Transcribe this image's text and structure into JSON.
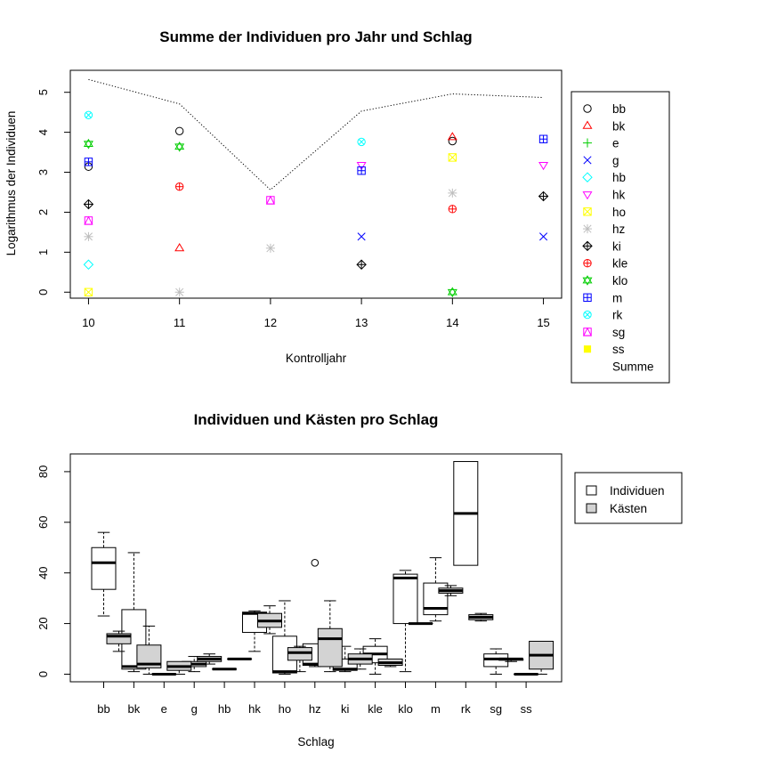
{
  "chart_data": [
    {
      "type": "scatter",
      "title": "Summe der Individuen pro Jahr und Schlag",
      "xlabel": "Kontrolljahr",
      "ylabel": "Logarithmus der Individuen",
      "xlim": [
        9.8,
        15.2
      ],
      "ylim": [
        -0.15,
        5.55
      ],
      "xticks": [
        10,
        11,
        12,
        13,
        14,
        15
      ],
      "yticks": [
        0,
        1,
        2,
        3,
        4,
        5
      ],
      "legend_position": "right",
      "series": [
        {
          "name": "bb",
          "color": "#000000",
          "marker": "circle",
          "points": [
            [
              10,
              3.14
            ],
            [
              11,
              4.03
            ],
            [
              14,
              3.78
            ]
          ]
        },
        {
          "name": "bk",
          "color": "#FF0000",
          "marker": "triangle-up",
          "points": [
            [
              11,
              1.1
            ],
            [
              14,
              3.88
            ]
          ]
        },
        {
          "name": "e",
          "color": "#00CD00",
          "marker": "plus",
          "points": []
        },
        {
          "name": "g",
          "color": "#0000FF",
          "marker": "x",
          "points": [
            [
              13,
              1.39
            ],
            [
              15,
              1.39
            ]
          ]
        },
        {
          "name": "hb",
          "color": "#00FFFF",
          "marker": "diamond",
          "points": [
            [
              10,
              0.69
            ]
          ]
        },
        {
          "name": "hk",
          "color": "#FF00FF",
          "marker": "triangle-down",
          "points": [
            [
              13,
              3.18
            ],
            [
              15,
              3.18
            ]
          ]
        },
        {
          "name": "ho",
          "color": "#FFFF00",
          "marker": "square-x",
          "points": [
            [
              10,
              0
            ],
            [
              14,
              3.37
            ]
          ]
        },
        {
          "name": "hz",
          "color": "#BEBEBE",
          "marker": "asterisk",
          "points": [
            [
              10,
              1.39
            ],
            [
              11,
              0
            ],
            [
              12,
              1.1
            ],
            [
              14,
              2.48
            ]
          ]
        },
        {
          "name": "ki",
          "color": "#000000",
          "marker": "diamond-plus",
          "points": [
            [
              10,
              2.2
            ],
            [
              13,
              0.69
            ],
            [
              15,
              2.4
            ]
          ]
        },
        {
          "name": "kle",
          "color": "#FF0000",
          "marker": "circle-plus",
          "points": [
            [
              11,
              2.64
            ],
            [
              14,
              2.08
            ]
          ]
        },
        {
          "name": "klo",
          "color": "#00CD00",
          "marker": "star-of-david",
          "points": [
            [
              10,
              3.71
            ],
            [
              11,
              3.64
            ],
            [
              14,
              0
            ]
          ]
        },
        {
          "name": "m",
          "color": "#0000FF",
          "marker": "square-plus",
          "points": [
            [
              10,
              3.26
            ],
            [
              13,
              3.04
            ],
            [
              15,
              3.83
            ]
          ]
        },
        {
          "name": "rk",
          "color": "#00FFFF",
          "marker": "circle-x",
          "points": [
            [
              10,
              4.43
            ],
            [
              13,
              3.76
            ]
          ]
        },
        {
          "name": "sg",
          "color": "#FF00FF",
          "marker": "square-triangle",
          "points": [
            [
              10,
              1.79
            ],
            [
              12,
              2.3
            ]
          ]
        },
        {
          "name": "ss",
          "color": "#FFFF00",
          "marker": "filled-square",
          "points": []
        },
        {
          "name": "Summe",
          "color": "#000000",
          "marker": "dotted-line",
          "line": [
            [
              10,
              5.32
            ],
            [
              11,
              4.71
            ],
            [
              12,
              2.56
            ],
            [
              13,
              4.53
            ],
            [
              14,
              4.96
            ],
            [
              15,
              4.87
            ]
          ]
        }
      ]
    },
    {
      "type": "box",
      "title": "Individuen und Kästen pro Schlag",
      "xlabel": "Schlag",
      "ylabel": "",
      "ylim": [
        -3,
        87
      ],
      "yticks": [
        0,
        20,
        40,
        60,
        80
      ],
      "categories": [
        "bb",
        "bk",
        "e",
        "g",
        "hb",
        "hk",
        "ho",
        "hz",
        "ki",
        "kle",
        "klo",
        "m",
        "rk",
        "sg",
        "ss"
      ],
      "legend_position": "top-right",
      "series": [
        {
          "name": "Individuen",
          "color": "#FFFFFF",
          "boxes": [
            {
              "min": 23,
              "q1": 33.5,
              "median": 44,
              "q3": 50,
              "max": 56,
              "outliers": []
            },
            {
              "min": 1,
              "q1": 2,
              "median": 3,
              "q3": 25.5,
              "max": 48,
              "outliers": []
            },
            {
              "min": 0,
              "q1": 0,
              "median": 0,
              "q3": 0,
              "max": 0,
              "outliers": []
            },
            {
              "min": 1,
              "q1": 3,
              "median": 4,
              "q3": 5,
              "max": 7,
              "outliers": []
            },
            {
              "min": 2,
              "q1": 2,
              "median": 2,
              "q3": 2,
              "max": 2,
              "outliers": []
            },
            {
              "min": 9,
              "q1": 16.5,
              "median": 24,
              "q3": 24.5,
              "max": 25,
              "outliers": []
            },
            {
              "min": 0,
              "q1": 0.5,
              "median": 1,
              "q3": 15,
              "max": 29,
              "outliers": []
            },
            {
              "min": 3,
              "q1": 3.5,
              "median": 4,
              "q3": 12,
              "max": 12,
              "outliers": [
                44
              ]
            },
            {
              "min": 1,
              "q1": 1.5,
              "median": 2,
              "q3": 6,
              "max": 11,
              "outliers": []
            },
            {
              "min": 0,
              "q1": 4.5,
              "median": 8,
              "q3": 11,
              "max": 14,
              "outliers": []
            },
            {
              "min": 1,
              "q1": 20,
              "median": 38,
              "q3": 39.5,
              "max": 41,
              "outliers": []
            },
            {
              "min": 21,
              "q1": 23.5,
              "median": 26,
              "q3": 36,
              "max": 46,
              "outliers": []
            },
            {
              "min": 43,
              "q1": 43,
              "median": 63.5,
              "q3": 84,
              "max": 84,
              "outliers": []
            },
            {
              "min": 0,
              "q1": 3,
              "median": 6,
              "q3": 8,
              "max": 10,
              "outliers": []
            },
            {
              "min": 0,
              "q1": 0,
              "median": 0,
              "q3": 0,
              "max": 0,
              "outliers": []
            }
          ]
        },
        {
          "name": "Kästen",
          "color": "#D3D3D3",
          "boxes": [
            {
              "min": 9,
              "q1": 12,
              "median": 15,
              "q3": 16,
              "max": 17,
              "outliers": []
            },
            {
              "min": 0,
              "q1": 2.5,
              "median": 4,
              "q3": 11.5,
              "max": 19,
              "outliers": []
            },
            {
              "min": 0,
              "q1": 1.5,
              "median": 3,
              "q3": 5,
              "max": 5,
              "outliers": []
            },
            {
              "min": 4,
              "q1": 5,
              "median": 6,
              "q3": 7,
              "max": 8,
              "outliers": []
            },
            {
              "min": 6,
              "q1": 6,
              "median": 6,
              "q3": 6,
              "max": 6,
              "outliers": []
            },
            {
              "min": 16,
              "q1": 18.5,
              "median": 21,
              "q3": 24,
              "max": 27,
              "outliers": []
            },
            {
              "min": 1,
              "q1": 5.5,
              "median": 8.5,
              "q3": 10.5,
              "max": 11,
              "outliers": []
            },
            {
              "min": 1,
              "q1": 3,
              "median": 14,
              "q3": 18,
              "max": 29,
              "outliers": []
            },
            {
              "min": 2,
              "q1": 4,
              "median": 6,
              "q3": 8,
              "max": 10,
              "outliers": []
            },
            {
              "min": 3,
              "q1": 3.5,
              "median": 4.5,
              "q3": 6,
              "max": 6,
              "outliers": []
            },
            {
              "min": 20,
              "q1": 20,
              "median": 20,
              "q3": 20,
              "max": 20,
              "outliers": []
            },
            {
              "min": 31,
              "q1": 32,
              "median": 33,
              "q3": 34,
              "max": 35,
              "outliers": []
            },
            {
              "min": 21,
              "q1": 21.5,
              "median": 22.5,
              "q3": 23.5,
              "max": 24,
              "outliers": []
            },
            {
              "min": 5,
              "q1": 5.5,
              "median": 6,
              "q3": 6,
              "max": 6,
              "outliers": []
            },
            {
              "min": 0,
              "q1": 2,
              "median": 7.5,
              "q3": 13,
              "max": 13,
              "outliers": []
            }
          ]
        }
      ]
    }
  ]
}
